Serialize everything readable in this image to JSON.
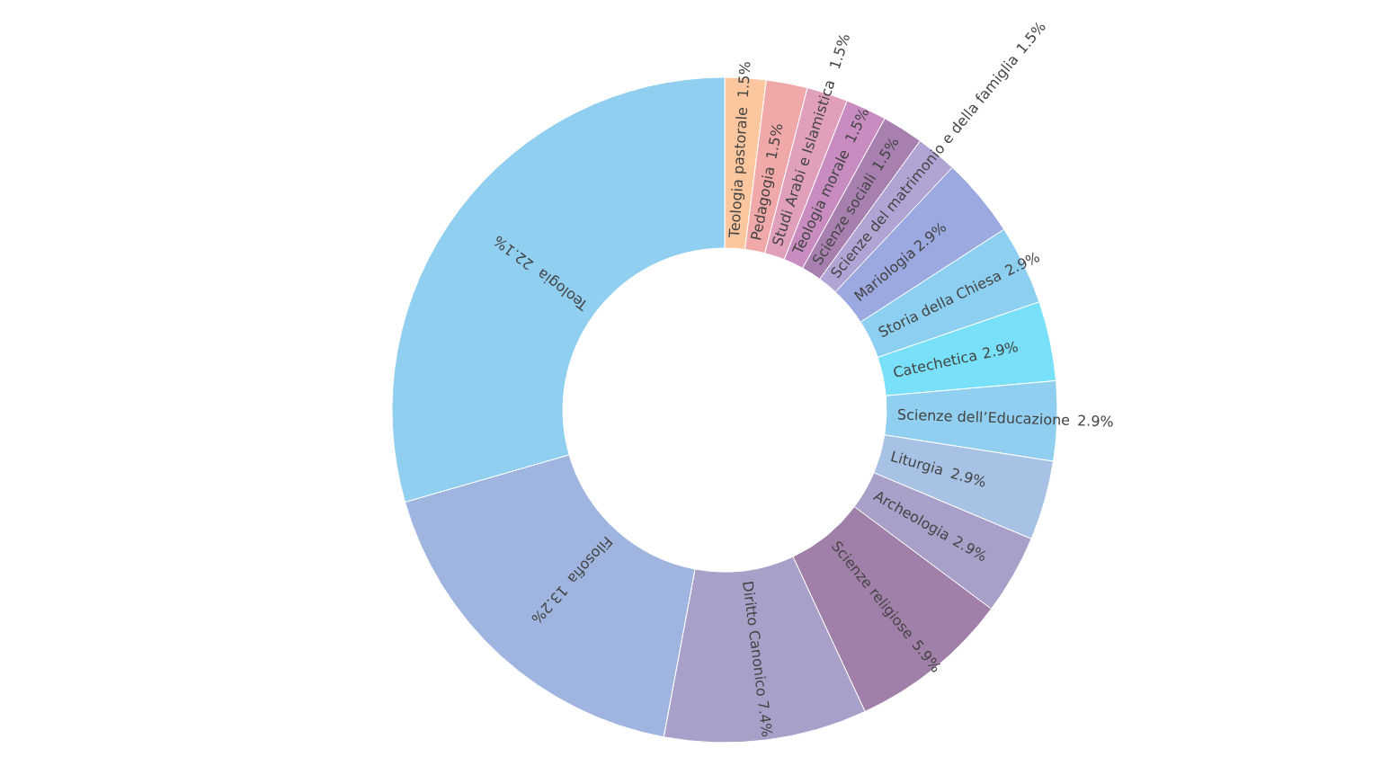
{
  "chart_data": {
    "type": "donut",
    "categories": [
      "Teologia pastorale",
      "Pedagogia",
      "Studi Arabi e Islamistica",
      "Teologia morale",
      "Scienze sociali",
      "Scienze del matrimonio e della famiglia",
      "Mariologia",
      "Storia della Chiesa",
      "Catechetica",
      "Scienze dell’Educazione",
      "Liturgia",
      "Archeologia",
      "Scienze religiose",
      "Diritto Canonico",
      "Filosofia",
      "Teologia"
    ],
    "values": [
      1.5,
      1.5,
      1.5,
      1.5,
      1.5,
      1.5,
      2.9,
      2.9,
      2.9,
      2.9,
      2.9,
      2.9,
      5.9,
      7.4,
      13.2,
      22.1
    ],
    "value_labels": [
      "1.5%",
      "1.5%",
      "1.5%",
      "1.5%",
      "1.5%",
      "1.5%",
      "2.9%",
      "2.9%",
      "2.9%",
      "2.9%",
      "2.9%",
      "2.9%",
      "5.9%",
      "7.4%",
      "13.2%",
      "22.1%"
    ],
    "colors": [
      "#fcc79e",
      "#f0a8a8",
      "#e0a0bc",
      "#c88cc0",
      "#a880b0",
      "#b0a4d4",
      "#9ca8e0",
      "#8ccff0",
      "#78e0f8",
      "#90cff0",
      "#a8c2e6",
      "#a8a0c8",
      "#a080a8",
      "#a8a0c8",
      "#a0b4e0",
      "#90cff0"
    ],
    "legend": false
  }
}
